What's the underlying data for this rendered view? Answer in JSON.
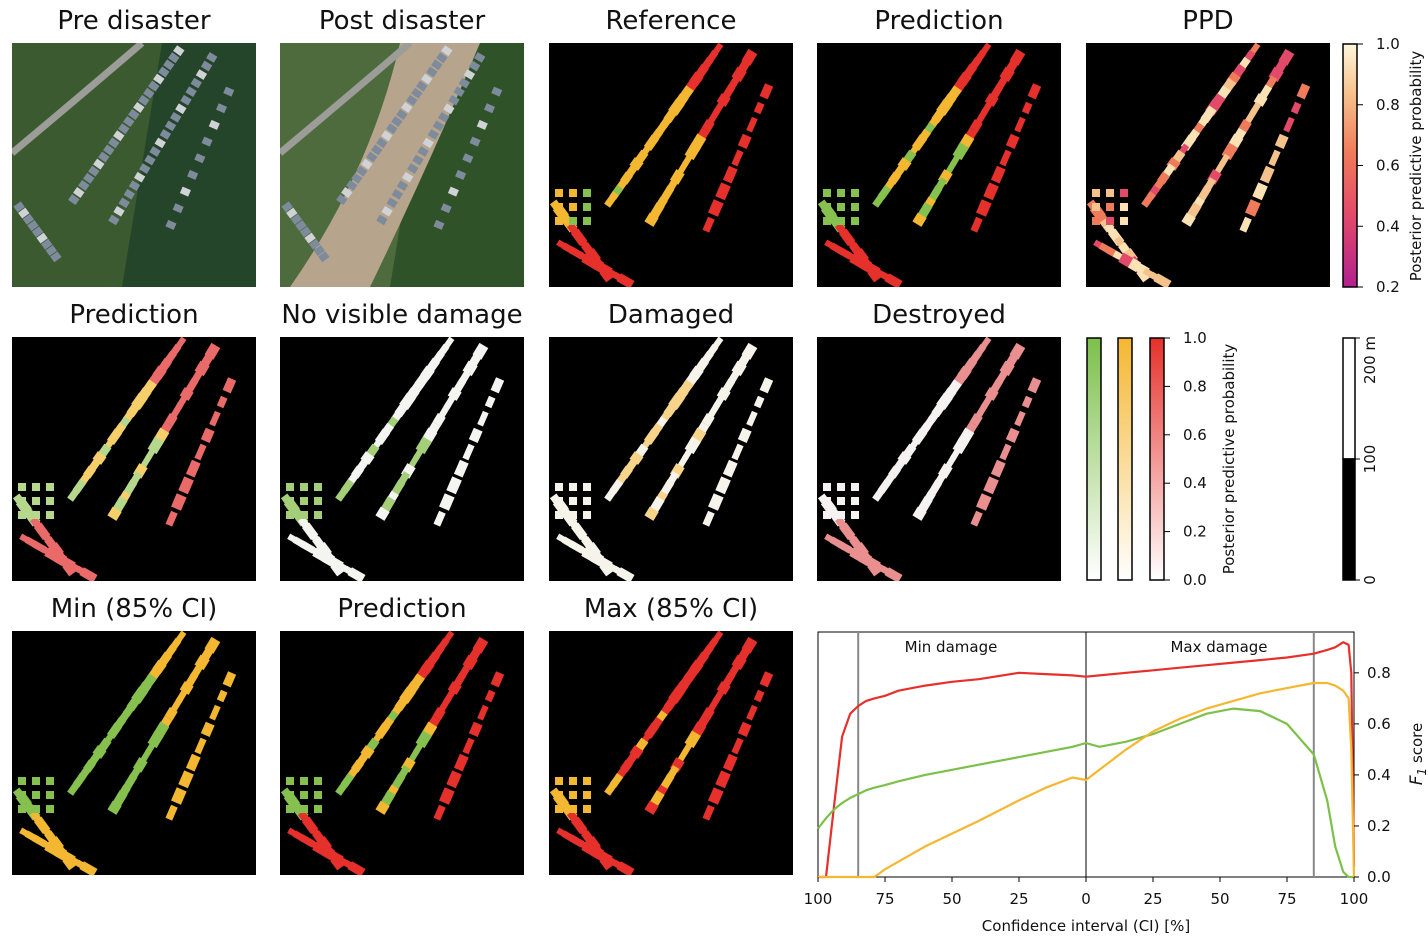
{
  "panels": {
    "pre_disaster": {
      "title": "Pre disaster"
    },
    "post_disaster": {
      "title": "Post disaster"
    },
    "reference": {
      "title": "Reference"
    },
    "prediction_top": {
      "title": "Prediction"
    },
    "ppd": {
      "title": "PPD"
    },
    "prediction_mid": {
      "title": "Prediction"
    },
    "no_visible_damage": {
      "title": "No visible damage"
    },
    "damaged": {
      "title": "Damaged"
    },
    "destroyed": {
      "title": "Destroyed"
    },
    "min_ci": {
      "title": "Min (85% CI)"
    },
    "prediction_bottom": {
      "title": "Prediction"
    },
    "max_ci": {
      "title": "Max (85% CI)"
    }
  },
  "ppd_colorbar": {
    "label": "Posterior predictive probability",
    "ticks": [
      "1.0",
      "0.8",
      "0.6",
      "0.4",
      "0.2"
    ],
    "range": [
      0.2,
      1.0
    ]
  },
  "class_colorbar": {
    "label": "Posterior predictive probability",
    "ticks": [
      "1.0",
      "0.8",
      "0.6",
      "0.4",
      "0.2",
      "0.0"
    ],
    "range": [
      0.0,
      1.0
    ],
    "colors": [
      "#7cc04a",
      "#f4b731",
      "#e6302b"
    ]
  },
  "scalebar": {
    "ticks": [
      "200 m",
      "100",
      "0"
    ]
  },
  "chart_data": {
    "type": "line",
    "xlabel": "Confidence interval (CI) [%]",
    "ylabel": "F1 score",
    "x_ticks": [
      "100",
      "75",
      "50",
      "25",
      "0",
      "25",
      "50",
      "75",
      "100"
    ],
    "y_ticks": [
      "0.0",
      "0.2",
      "0.4",
      "0.6",
      "0.8"
    ],
    "ylim": [
      0,
      0.96
    ],
    "annotations": [
      "Min damage",
      "Max damage"
    ],
    "vlines": [
      -85,
      0,
      85
    ],
    "grid": false,
    "x": [
      -100,
      -97,
      -94,
      -91,
      -88,
      -85,
      -82,
      -79,
      -75,
      -70,
      -60,
      -50,
      -40,
      -25,
      -15,
      -5,
      0,
      5,
      15,
      25,
      35,
      45,
      55,
      65,
      75,
      85,
      90,
      93,
      96,
      98,
      99,
      100
    ],
    "series": [
      {
        "color": "#e6302b",
        "values": [
          0.0,
          0.0,
          0.28,
          0.55,
          0.64,
          0.67,
          0.69,
          0.7,
          0.71,
          0.73,
          0.75,
          0.765,
          0.775,
          0.8,
          0.795,
          0.79,
          0.785,
          0.79,
          0.8,
          0.81,
          0.82,
          0.83,
          0.84,
          0.85,
          0.86,
          0.875,
          0.89,
          0.9,
          0.92,
          0.91,
          0.8,
          0.04
        ]
      },
      {
        "color": "#7cc04a",
        "values": [
          0.19,
          0.23,
          0.265,
          0.29,
          0.31,
          0.325,
          0.34,
          0.35,
          0.36,
          0.375,
          0.4,
          0.42,
          0.44,
          0.47,
          0.49,
          0.51,
          0.525,
          0.51,
          0.53,
          0.56,
          0.6,
          0.64,
          0.66,
          0.65,
          0.6,
          0.48,
          0.3,
          0.12,
          0.02,
          0.0,
          0.0,
          0.0
        ]
      },
      {
        "color": "#f4b731",
        "values": [
          0.0,
          0.0,
          0.0,
          0.0,
          0.0,
          0.0,
          0.0,
          0.0,
          0.03,
          0.06,
          0.12,
          0.17,
          0.22,
          0.3,
          0.35,
          0.39,
          0.38,
          0.42,
          0.5,
          0.57,
          0.62,
          0.66,
          0.69,
          0.72,
          0.74,
          0.76,
          0.76,
          0.75,
          0.73,
          0.7,
          0.5,
          0.0
        ]
      }
    ]
  }
}
